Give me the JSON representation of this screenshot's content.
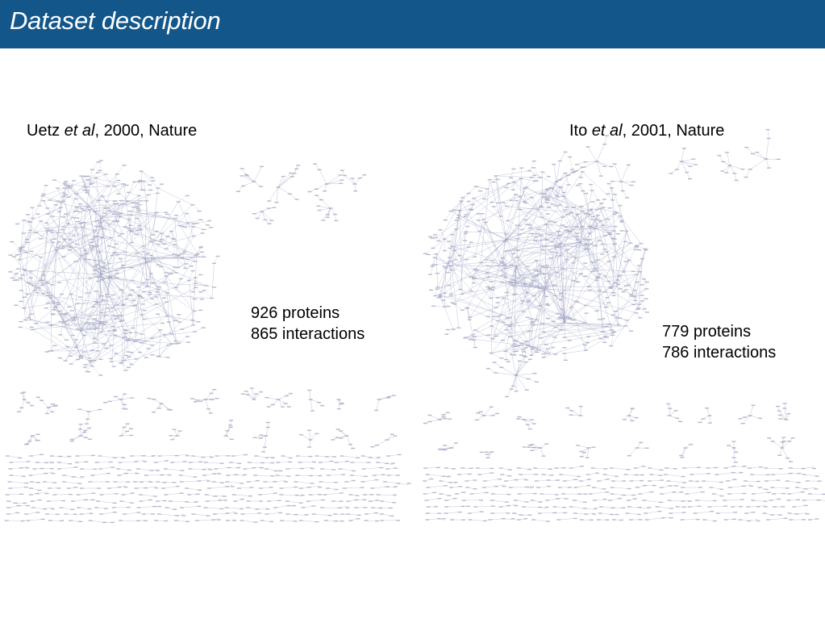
{
  "header": {
    "title": "Dataset description"
  },
  "datasets": [
    {
      "citation": {
        "author": "Uetz",
        "etal": "et al",
        "rest": ", 2000, Nature"
      },
      "proteins": "926 proteins",
      "interactions": "865 interactions"
    },
    {
      "citation": {
        "author": "Ito",
        "etal": "et al",
        "rest": ", 2001, Nature"
      },
      "proteins": "779 proteins",
      "interactions": "786 interactions"
    }
  ],
  "colors": {
    "header_bg": "#12568a",
    "network_edge": "#8a8fb8",
    "network_node": "#b7bacd"
  }
}
